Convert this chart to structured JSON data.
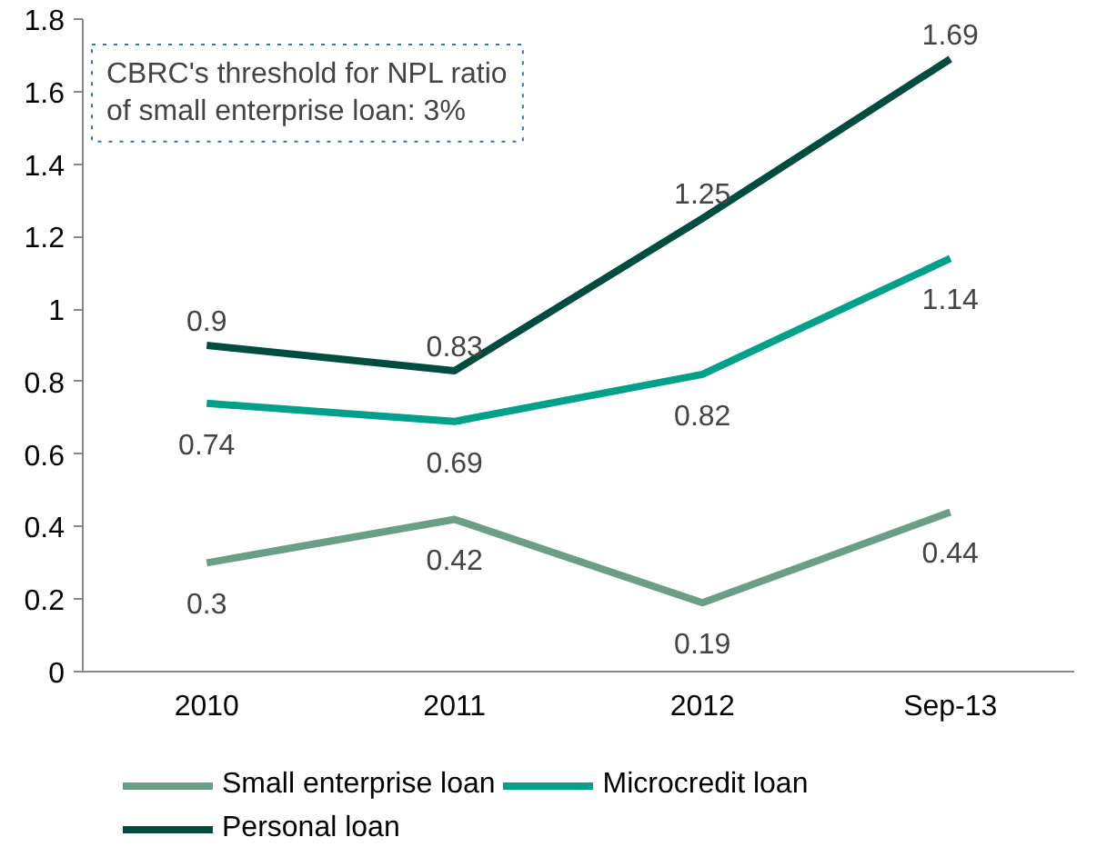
{
  "chart_data": {
    "type": "line",
    "categories": [
      "2010",
      "2011",
      "2012",
      "Sep-13"
    ],
    "series": [
      {
        "name": "Small enterprise loan",
        "color": "#6a9e87",
        "values": [
          0.3,
          0.42,
          0.19,
          0.44
        ]
      },
      {
        "name": "Microcredit loan",
        "color": "#00a08a",
        "values": [
          0.74,
          0.69,
          0.82,
          1.14
        ]
      },
      {
        "name": "Personal loan",
        "color": "#004c3f",
        "values": [
          0.9,
          0.83,
          1.25,
          1.69
        ]
      }
    ],
    "ylim": [
      0,
      1.8
    ],
    "yticks": [
      0,
      0.2,
      0.4,
      0.6,
      0.8,
      1,
      1.2,
      1.4,
      1.6,
      1.8
    ],
    "grid": false,
    "legend": "bottom",
    "data_labels": true,
    "marker": "none",
    "line_style": "solid",
    "annotations": [
      "CBRC's threshold for NPL ratio\nof small enterprise loan: 3%"
    ]
  }
}
